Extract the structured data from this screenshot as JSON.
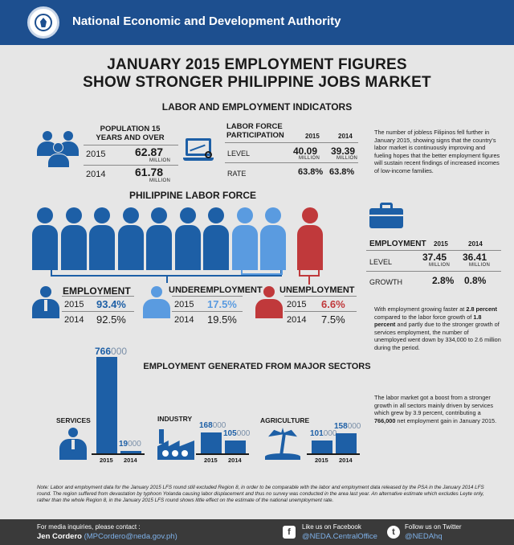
{
  "header": {
    "org_name": "National Economic and Development Authority"
  },
  "title": {
    "line1": "JANUARY 2015 EMPLOYMENT FIGURES",
    "line2": "SHOW STRONGER PHILIPPINE JOBS MARKET"
  },
  "indicators": {
    "heading": "LABOR AND EMPLOYMENT INDICATORS",
    "population": {
      "heading_line1": "POPULATION 15",
      "heading_line2": "YEARS AND OVER",
      "rows": [
        {
          "year": "2015",
          "value": "62.87",
          "unit": "MILLION"
        },
        {
          "year": "2014",
          "value": "61.78",
          "unit": "MILLION"
        }
      ]
    },
    "lfp": {
      "heading_line1": "LABOR FORCE",
      "heading_line2": "PARTICIPATION",
      "col1": "2015",
      "col2": "2014",
      "level_label": "LEVEL",
      "level_2015": "40.09",
      "level_2014": "39.39",
      "unit": "MILLION",
      "rate_label": "RATE",
      "rate_2015": "63.8%",
      "rate_2014": "63.8%"
    },
    "note": "The number of jobless Filipinos fell further in January 2015, showing signs that the country's labor market is continuously improving and fueling hopes that the better employment figures will sustain recent findings of increased incomes of low-income families."
  },
  "labor_force": {
    "heading": "PHILIPPINE LABOR FORCE",
    "employment": {
      "label": "EMPLOYMENT",
      "y1": "2015",
      "v1": "93.4%",
      "y2": "2014",
      "v2": "92.5%"
    },
    "underemployment": {
      "label": "UNDEREMPLOYMENT",
      "y1": "2015",
      "v1": "17.5%",
      "y2": "2014",
      "v2": "19.5%"
    },
    "unemployment": {
      "label": "UNEMPLOYMENT",
      "y1": "2015",
      "v1": "6.6%",
      "y2": "2014",
      "v2": "7.5%"
    },
    "colors": {
      "employed": "#1d5fa6",
      "underemployed": "#5a9be0",
      "unemployed": "#c0393b"
    }
  },
  "employment_box": {
    "heading": "EMPLOYMENT",
    "col1": "2015",
    "col2": "2014",
    "level_label": "LEVEL",
    "level_2015": "37.45",
    "level_2014": "36.41",
    "unit": "MILLION",
    "growth_label": "GROWTH",
    "growth_2015": "2.8%",
    "growth_2014": "0.8%",
    "note_pre": "With employment growing faster at ",
    "note_b1": "2.8 percent",
    "note_mid1": " compared to the labor force growth of ",
    "note_b2": "1.8 percent",
    "note_post": " and partly due to the stronger growth of services employment, the number of unemployed went down by 334,000 to 2.6 million during the period."
  },
  "sectors": {
    "heading": "EMPLOYMENT GENERATED FROM MAJOR SECTORS",
    "chart_data": {
      "type": "bar",
      "unit_suffix": "000",
      "groups": [
        {
          "name": "SERVICES",
          "categories": [
            "2015",
            "2014"
          ],
          "values": [
            766000,
            19000
          ],
          "labels": [
            "766",
            "19"
          ]
        },
        {
          "name": "INDUSTRY",
          "categories": [
            "2015",
            "2014"
          ],
          "values": [
            168000,
            105000
          ],
          "labels": [
            "168",
            "105"
          ]
        },
        {
          "name": "AGRICULTURE",
          "categories": [
            "2015",
            "2014"
          ],
          "values": [
            101000,
            158000
          ],
          "labels": [
            "101",
            "158"
          ]
        }
      ]
    },
    "note_pre": "The labor market got a boost from a stronger growth in all sectors mainly driven by services which grew by 3.9 percent, contributing a ",
    "note_b": "766,000",
    "note_post": " net employment gain in January 2015."
  },
  "footnote": "Note: Labor and employment data for the January 2015 LFS round still excluded Region 8, in order to be comparable with the labor and employment data released by the PSA in the January 2014 LFS round. The region suffered from devastation by typhoon Yolanda causing labor displacement and thus no survey was conducted in the area last year. An alternative estimate which excludes Leyte only, rather than the whole Region 8, in the January 2015 LFS round shows little effect on the estimate of the national unemployment rate.",
  "footer": {
    "media_label": "For media inquiries, please contact :",
    "contact_name": "Jen Cordero",
    "contact_email": "(MPCordero@neda.gov.ph)",
    "facebook_label": "Like us on Facebook",
    "facebook_handle": "@NEDA.CentralOffice",
    "twitter_label": "Follow us on Twitter",
    "twitter_handle": "@NEDAhq"
  }
}
